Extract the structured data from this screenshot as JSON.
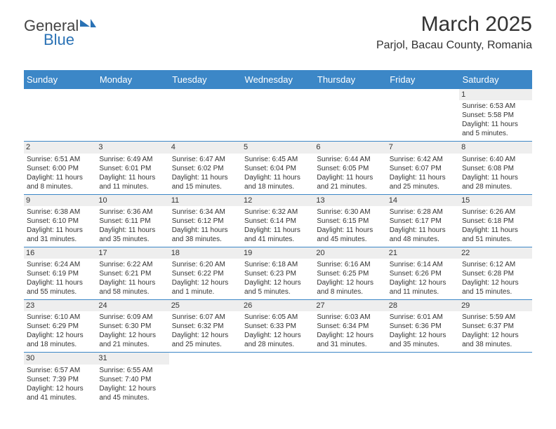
{
  "logo": {
    "part1": "General",
    "part2": "Blue"
  },
  "title": "March 2025",
  "location": "Parjol, Bacau County, Romania",
  "colors": {
    "header_bg": "#3c87c7",
    "header_fg": "#ffffff",
    "daynum_bg": "#eeeeee",
    "border": "#3c87c7",
    "logo_accent": "#2a72b5"
  },
  "weekdays": [
    "Sunday",
    "Monday",
    "Tuesday",
    "Wednesday",
    "Thursday",
    "Friday",
    "Saturday"
  ],
  "weeks": [
    [
      {
        "n": "",
        "l": [
          "",
          "",
          "",
          ""
        ]
      },
      {
        "n": "",
        "l": [
          "",
          "",
          "",
          ""
        ]
      },
      {
        "n": "",
        "l": [
          "",
          "",
          "",
          ""
        ]
      },
      {
        "n": "",
        "l": [
          "",
          "",
          "",
          ""
        ]
      },
      {
        "n": "",
        "l": [
          "",
          "",
          "",
          ""
        ]
      },
      {
        "n": "",
        "l": [
          "",
          "",
          "",
          ""
        ]
      },
      {
        "n": "1",
        "l": [
          "Sunrise: 6:53 AM",
          "Sunset: 5:58 PM",
          "Daylight: 11 hours",
          "and 5 minutes."
        ]
      }
    ],
    [
      {
        "n": "2",
        "l": [
          "Sunrise: 6:51 AM",
          "Sunset: 6:00 PM",
          "Daylight: 11 hours",
          "and 8 minutes."
        ]
      },
      {
        "n": "3",
        "l": [
          "Sunrise: 6:49 AM",
          "Sunset: 6:01 PM",
          "Daylight: 11 hours",
          "and 11 minutes."
        ]
      },
      {
        "n": "4",
        "l": [
          "Sunrise: 6:47 AM",
          "Sunset: 6:02 PM",
          "Daylight: 11 hours",
          "and 15 minutes."
        ]
      },
      {
        "n": "5",
        "l": [
          "Sunrise: 6:45 AM",
          "Sunset: 6:04 PM",
          "Daylight: 11 hours",
          "and 18 minutes."
        ]
      },
      {
        "n": "6",
        "l": [
          "Sunrise: 6:44 AM",
          "Sunset: 6:05 PM",
          "Daylight: 11 hours",
          "and 21 minutes."
        ]
      },
      {
        "n": "7",
        "l": [
          "Sunrise: 6:42 AM",
          "Sunset: 6:07 PM",
          "Daylight: 11 hours",
          "and 25 minutes."
        ]
      },
      {
        "n": "8",
        "l": [
          "Sunrise: 6:40 AM",
          "Sunset: 6:08 PM",
          "Daylight: 11 hours",
          "and 28 minutes."
        ]
      }
    ],
    [
      {
        "n": "9",
        "l": [
          "Sunrise: 6:38 AM",
          "Sunset: 6:10 PM",
          "Daylight: 11 hours",
          "and 31 minutes."
        ]
      },
      {
        "n": "10",
        "l": [
          "Sunrise: 6:36 AM",
          "Sunset: 6:11 PM",
          "Daylight: 11 hours",
          "and 35 minutes."
        ]
      },
      {
        "n": "11",
        "l": [
          "Sunrise: 6:34 AM",
          "Sunset: 6:12 PM",
          "Daylight: 11 hours",
          "and 38 minutes."
        ]
      },
      {
        "n": "12",
        "l": [
          "Sunrise: 6:32 AM",
          "Sunset: 6:14 PM",
          "Daylight: 11 hours",
          "and 41 minutes."
        ]
      },
      {
        "n": "13",
        "l": [
          "Sunrise: 6:30 AM",
          "Sunset: 6:15 PM",
          "Daylight: 11 hours",
          "and 45 minutes."
        ]
      },
      {
        "n": "14",
        "l": [
          "Sunrise: 6:28 AM",
          "Sunset: 6:17 PM",
          "Daylight: 11 hours",
          "and 48 minutes."
        ]
      },
      {
        "n": "15",
        "l": [
          "Sunrise: 6:26 AM",
          "Sunset: 6:18 PM",
          "Daylight: 11 hours",
          "and 51 minutes."
        ]
      }
    ],
    [
      {
        "n": "16",
        "l": [
          "Sunrise: 6:24 AM",
          "Sunset: 6:19 PM",
          "Daylight: 11 hours",
          "and 55 minutes."
        ]
      },
      {
        "n": "17",
        "l": [
          "Sunrise: 6:22 AM",
          "Sunset: 6:21 PM",
          "Daylight: 11 hours",
          "and 58 minutes."
        ]
      },
      {
        "n": "18",
        "l": [
          "Sunrise: 6:20 AM",
          "Sunset: 6:22 PM",
          "Daylight: 12 hours",
          "and 1 minute."
        ]
      },
      {
        "n": "19",
        "l": [
          "Sunrise: 6:18 AM",
          "Sunset: 6:23 PM",
          "Daylight: 12 hours",
          "and 5 minutes."
        ]
      },
      {
        "n": "20",
        "l": [
          "Sunrise: 6:16 AM",
          "Sunset: 6:25 PM",
          "Daylight: 12 hours",
          "and 8 minutes."
        ]
      },
      {
        "n": "21",
        "l": [
          "Sunrise: 6:14 AM",
          "Sunset: 6:26 PM",
          "Daylight: 12 hours",
          "and 11 minutes."
        ]
      },
      {
        "n": "22",
        "l": [
          "Sunrise: 6:12 AM",
          "Sunset: 6:28 PM",
          "Daylight: 12 hours",
          "and 15 minutes."
        ]
      }
    ],
    [
      {
        "n": "23",
        "l": [
          "Sunrise: 6:10 AM",
          "Sunset: 6:29 PM",
          "Daylight: 12 hours",
          "and 18 minutes."
        ]
      },
      {
        "n": "24",
        "l": [
          "Sunrise: 6:09 AM",
          "Sunset: 6:30 PM",
          "Daylight: 12 hours",
          "and 21 minutes."
        ]
      },
      {
        "n": "25",
        "l": [
          "Sunrise: 6:07 AM",
          "Sunset: 6:32 PM",
          "Daylight: 12 hours",
          "and 25 minutes."
        ]
      },
      {
        "n": "26",
        "l": [
          "Sunrise: 6:05 AM",
          "Sunset: 6:33 PM",
          "Daylight: 12 hours",
          "and 28 minutes."
        ]
      },
      {
        "n": "27",
        "l": [
          "Sunrise: 6:03 AM",
          "Sunset: 6:34 PM",
          "Daylight: 12 hours",
          "and 31 minutes."
        ]
      },
      {
        "n": "28",
        "l": [
          "Sunrise: 6:01 AM",
          "Sunset: 6:36 PM",
          "Daylight: 12 hours",
          "and 35 minutes."
        ]
      },
      {
        "n": "29",
        "l": [
          "Sunrise: 5:59 AM",
          "Sunset: 6:37 PM",
          "Daylight: 12 hours",
          "and 38 minutes."
        ]
      }
    ],
    [
      {
        "n": "30",
        "l": [
          "Sunrise: 6:57 AM",
          "Sunset: 7:39 PM",
          "Daylight: 12 hours",
          "and 41 minutes."
        ]
      },
      {
        "n": "31",
        "l": [
          "Sunrise: 6:55 AM",
          "Sunset: 7:40 PM",
          "Daylight: 12 hours",
          "and 45 minutes."
        ]
      },
      {
        "n": "",
        "l": [
          "",
          "",
          "",
          ""
        ]
      },
      {
        "n": "",
        "l": [
          "",
          "",
          "",
          ""
        ]
      },
      {
        "n": "",
        "l": [
          "",
          "",
          "",
          ""
        ]
      },
      {
        "n": "",
        "l": [
          "",
          "",
          "",
          ""
        ]
      },
      {
        "n": "",
        "l": [
          "",
          "",
          "",
          ""
        ]
      }
    ]
  ]
}
